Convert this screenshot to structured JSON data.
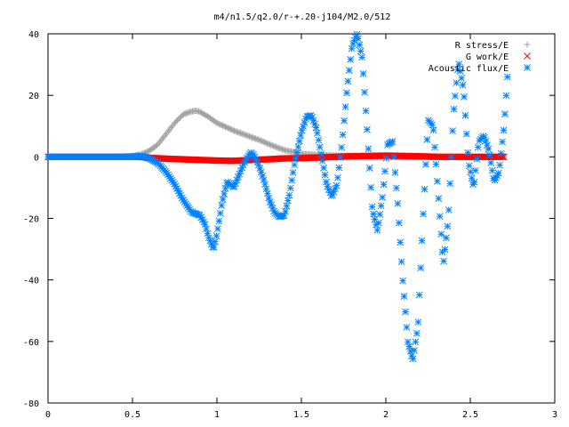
{
  "chart_data": {
    "type": "scatter",
    "title": "m4/n1.5/q2.0/r-+.20-j104/M2.0/512",
    "xlabel": "",
    "ylabel": "",
    "xlim": [
      0,
      3
    ],
    "ylim": [
      -80,
      40
    ],
    "x_ticks": [
      {
        "value": 0,
        "label": "0"
      },
      {
        "value": 0.5,
        "label": "0.5"
      },
      {
        "value": 1,
        "label": "1"
      },
      {
        "value": 1.5,
        "label": "1.5"
      },
      {
        "value": 2,
        "label": "2"
      },
      {
        "value": 2.5,
        "label": "2.5"
      },
      {
        "value": 3,
        "label": "3"
      }
    ],
    "y_ticks": [
      {
        "value": 40,
        "label": "40"
      },
      {
        "value": 20,
        "label": "20"
      },
      {
        "value": 0,
        "label": "0"
      },
      {
        "value": -20,
        "label": "-20"
      },
      {
        "value": -40,
        "label": "-40"
      },
      {
        "value": -60,
        "label": "-60"
      },
      {
        "value": -80,
        "label": "-80"
      }
    ],
    "grid": false,
    "legend_position": "top-right",
    "series": [
      {
        "name": "R stress/E",
        "marker": "plus",
        "color": "#a0a0a0",
        "x": [
          0.0,
          0.1,
          0.2,
          0.3,
          0.4,
          0.5,
          0.55,
          0.6,
          0.65,
          0.7,
          0.75,
          0.8,
          0.85,
          0.88,
          0.9,
          0.95,
          1.0,
          1.05,
          1.1,
          1.15,
          1.2,
          1.25,
          1.3,
          1.35,
          1.4,
          1.5,
          1.6,
          1.7,
          1.8,
          1.9,
          2.0,
          2.1,
          2.2,
          2.3,
          2.4,
          2.5,
          2.6,
          2.7
        ],
        "y": [
          0,
          0,
          0,
          0,
          0,
          0.3,
          0.8,
          2,
          4,
          7.5,
          11,
          13.8,
          14.8,
          15,
          14.6,
          13,
          11,
          9.8,
          8.5,
          7.5,
          6.5,
          5.5,
          4.3,
          3.2,
          2.2,
          1,
          0.6,
          0.4,
          0.3,
          0.2,
          0.1,
          0,
          0,
          0,
          0,
          0,
          0,
          0
        ]
      },
      {
        "name": "G work/E",
        "marker": "cross",
        "color": "#ff0000",
        "x": [
          0.0,
          0.1,
          0.2,
          0.3,
          0.4,
          0.5,
          0.55,
          0.6,
          0.7,
          0.8,
          0.9,
          1.0,
          1.1,
          1.2,
          1.3,
          1.4,
          1.5,
          1.6,
          1.7,
          1.8,
          1.9,
          2.0,
          2.1,
          2.2,
          2.3,
          2.4,
          2.5,
          2.6,
          2.7
        ],
        "y": [
          0,
          0,
          0,
          0,
          0,
          0,
          0,
          -0.3,
          -0.6,
          -0.8,
          -1,
          -1.2,
          -1.3,
          -1,
          -0.8,
          -0.5,
          -0.4,
          -0.2,
          0,
          0.2,
          0.3,
          0.4,
          0.3,
          0.2,
          0,
          0,
          0,
          0,
          0
        ]
      },
      {
        "name": "Acoustic flux/E",
        "marker": "star",
        "color": "#0080ff",
        "x": [
          0.0,
          0.1,
          0.2,
          0.3,
          0.4,
          0.5,
          0.55,
          0.6,
          0.65,
          0.7,
          0.75,
          0.8,
          0.85,
          0.9,
          0.93,
          0.95,
          0.98,
          1.0,
          1.03,
          1.06,
          1.1,
          1.13,
          1.16,
          1.2,
          1.22,
          1.25,
          1.28,
          1.31,
          1.34,
          1.37,
          1.4,
          1.43,
          1.46,
          1.5,
          1.53,
          1.56,
          1.59,
          1.62,
          1.65,
          1.68,
          1.71,
          1.74,
          1.77,
          1.8,
          1.83,
          1.86,
          1.89,
          1.92,
          1.95,
          1.98,
          2.01,
          2.04,
          2.07,
          2.1,
          2.13,
          2.16,
          2.19,
          2.22,
          2.25,
          2.28,
          2.31,
          2.34,
          2.37,
          2.4,
          2.43,
          2.46,
          2.49,
          2.52,
          2.55,
          2.58,
          2.61,
          2.64,
          2.67,
          2.7,
          2.72
        ],
        "y": [
          0,
          0,
          0,
          0,
          0,
          0,
          0.3,
          -0.5,
          -2,
          -5,
          -9,
          -14,
          -18,
          -19,
          -22,
          -26,
          -30,
          -25,
          -15,
          -8,
          -10,
          -6,
          -2,
          1.5,
          0.5,
          -3,
          -8,
          -14,
          -18,
          -19.5,
          -19,
          -12,
          -2,
          8,
          13,
          13.5,
          9,
          0,
          -9,
          -13,
          -9,
          4,
          22,
          36,
          40,
          32,
          8,
          -17,
          -24,
          -13,
          4,
          5,
          -15,
          -40,
          -60,
          -66,
          -55,
          -20,
          12,
          10,
          -12,
          -35,
          -20,
          14,
          31,
          22,
          -2,
          -10,
          5,
          7,
          2,
          -8,
          -5,
          10,
          26
        ]
      }
    ]
  }
}
